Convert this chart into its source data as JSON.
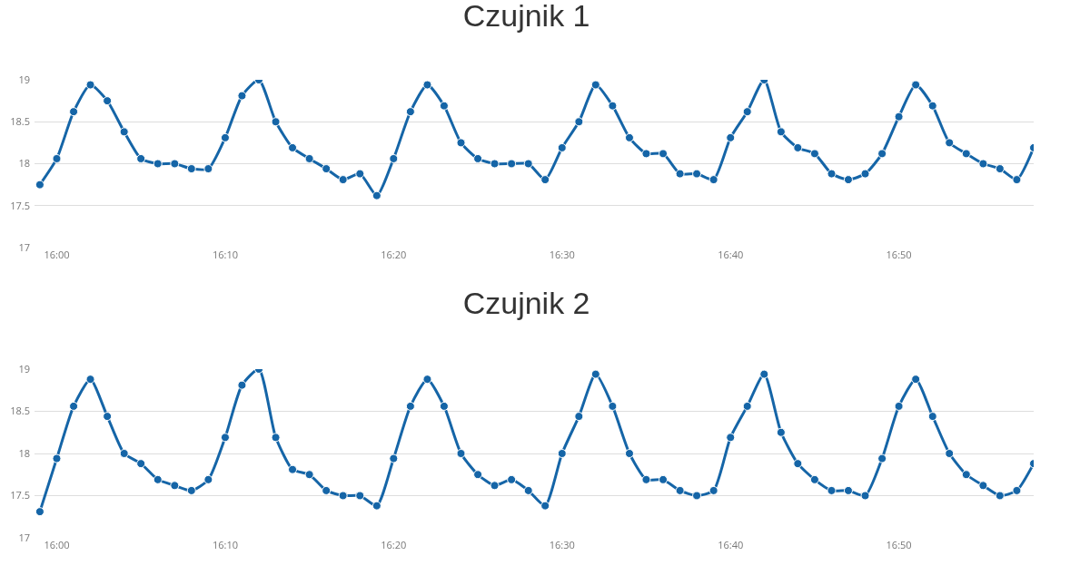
{
  "chart_data": [
    {
      "type": "line",
      "title": "Czujnik 1",
      "marker": "circle",
      "grid": "y",
      "x": [
        15.9833,
        16,
        16.0167,
        16.0333,
        16.05,
        16.0667,
        16.0833,
        16.1,
        16.1167,
        16.1333,
        16.15,
        16.1667,
        16.1833,
        16.2,
        16.2167,
        16.2333,
        16.25,
        16.2667,
        16.2833,
        16.3,
        16.3167,
        16.3333,
        16.35,
        16.3667,
        16.3833,
        16.4,
        16.4167,
        16.4333,
        16.45,
        16.4667,
        16.4833,
        16.5,
        16.5167,
        16.5333,
        16.55,
        16.5667,
        16.5833,
        16.6,
        16.6167,
        16.6333,
        16.65,
        16.6667,
        16.6833,
        16.7,
        16.7167,
        16.7333,
        16.75,
        16.7667,
        16.7833,
        16.8,
        16.8167,
        16.8333,
        16.85,
        16.8667,
        16.8833,
        16.9,
        16.9167,
        16.9333,
        16.95,
        16.9667
      ],
      "series": [
        {
          "color": "#1565a7",
          "values": [
            17.75,
            18.06,
            18.62,
            18.94,
            18.75,
            18.38,
            18.06,
            18,
            18,
            17.94,
            17.94,
            18.31,
            18.81,
            19,
            18.5,
            18.19,
            18.06,
            17.94,
            17.81,
            17.88,
            17.62,
            18.06,
            18.62,
            18.94,
            18.69,
            18.25,
            18.06,
            18,
            18,
            18,
            17.81,
            18.19,
            18.5,
            18.94,
            18.69,
            18.31,
            18.12,
            18.12,
            17.88,
            17.88,
            17.81,
            18.31,
            18.62,
            19,
            18.38,
            18.19,
            18.12,
            17.88,
            17.81,
            17.88,
            18.12,
            18.56,
            18.94,
            18.69,
            18.25,
            18.12,
            18,
            17.94,
            17.81,
            18.19
          ]
        }
      ],
      "xlim": [
        15.978,
        16.9667
      ],
      "xticks": [
        {
          "value": 16,
          "label": "16:00"
        },
        {
          "value": 16.1667,
          "label": "16:10"
        },
        {
          "value": 16.3333,
          "label": "16:20"
        },
        {
          "value": 16.5,
          "label": "16:30"
        },
        {
          "value": 16.6667,
          "label": "16:40"
        },
        {
          "value": 16.8333,
          "label": "16:50"
        }
      ],
      "ylim": [
        17,
        19
      ],
      "yticks": [
        17,
        17.5,
        18,
        18.5,
        19
      ]
    },
    {
      "type": "line",
      "title": "Czujnik 2",
      "marker": "circle",
      "grid": "y",
      "x": [
        15.9833,
        16,
        16.0167,
        16.0333,
        16.05,
        16.0667,
        16.0833,
        16.1,
        16.1167,
        16.1333,
        16.15,
        16.1667,
        16.1833,
        16.2,
        16.2167,
        16.2333,
        16.25,
        16.2667,
        16.2833,
        16.3,
        16.3167,
        16.3333,
        16.35,
        16.3667,
        16.3833,
        16.4,
        16.4167,
        16.4333,
        16.45,
        16.4667,
        16.4833,
        16.5,
        16.5167,
        16.5333,
        16.55,
        16.5667,
        16.5833,
        16.6,
        16.6167,
        16.6333,
        16.65,
        16.6667,
        16.6833,
        16.7,
        16.7167,
        16.7333,
        16.75,
        16.7667,
        16.7833,
        16.8,
        16.8167,
        16.8333,
        16.85,
        16.8667,
        16.8833,
        16.9,
        16.9167,
        16.9333,
        16.95,
        16.9667
      ],
      "series": [
        {
          "color": "#1565a7",
          "values": [
            17.31,
            17.94,
            18.56,
            18.88,
            18.44,
            18,
            17.88,
            17.69,
            17.62,
            17.56,
            17.69,
            18.19,
            18.81,
            19,
            18.19,
            17.81,
            17.75,
            17.56,
            17.5,
            17.5,
            17.38,
            17.94,
            18.56,
            18.88,
            18.56,
            18,
            17.75,
            17.62,
            17.69,
            17.56,
            17.38,
            18,
            18.44,
            18.94,
            18.56,
            18,
            17.69,
            17.69,
            17.56,
            17.5,
            17.56,
            18.19,
            18.56,
            18.94,
            18.25,
            17.88,
            17.69,
            17.56,
            17.56,
            17.5,
            17.94,
            18.56,
            18.88,
            18.44,
            18,
            17.75,
            17.62,
            17.5,
            17.56,
            17.88
          ]
        }
      ],
      "xlim": [
        15.978,
        16.9667
      ],
      "xticks": [
        {
          "value": 16,
          "label": "16:00"
        },
        {
          "value": 16.1667,
          "label": "16:10"
        },
        {
          "value": 16.3333,
          "label": "16:20"
        },
        {
          "value": 16.5,
          "label": "16:30"
        },
        {
          "value": 16.6667,
          "label": "16:40"
        },
        {
          "value": 16.8333,
          "label": "16:50"
        }
      ],
      "ylim": [
        17,
        19
      ],
      "yticks": [
        17,
        17.5,
        18,
        18.5,
        19
      ]
    }
  ]
}
